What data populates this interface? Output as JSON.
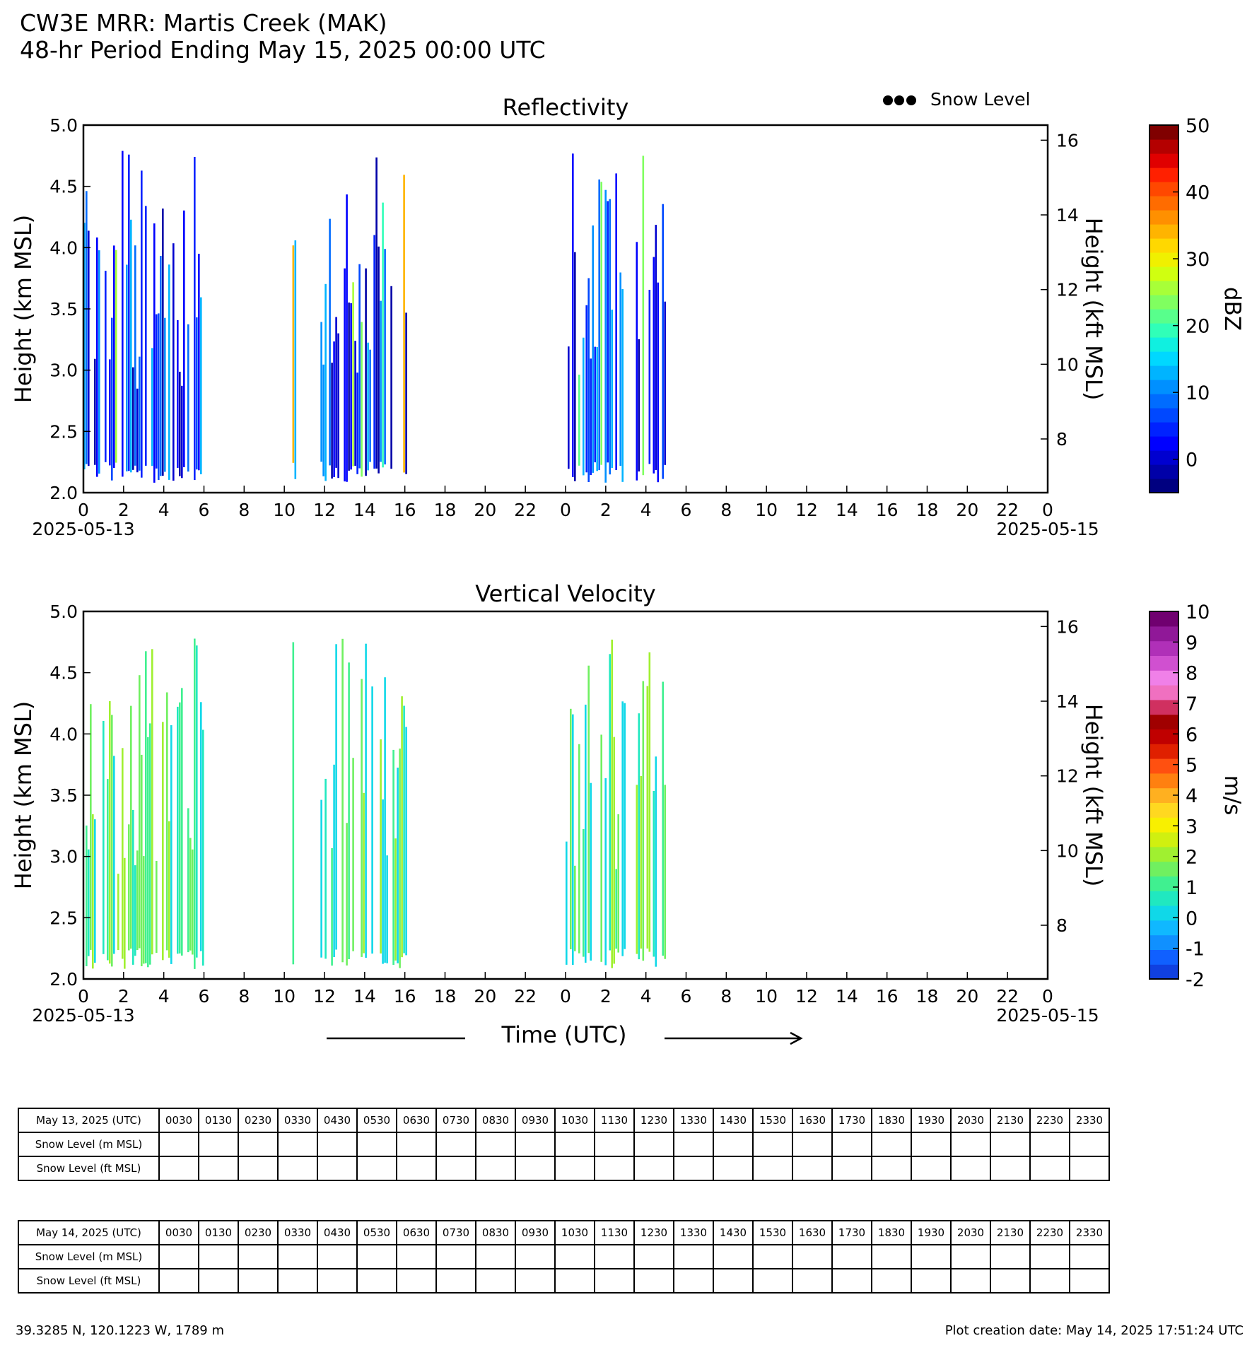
{
  "header": {
    "title_line1": "CW3E MRR: Martis Creek (MAK)",
    "title_line2": "48-hr Period Ending May 15, 2025 00:00 UTC"
  },
  "legend": {
    "snow_level_label": "Snow Level",
    "marker": "●●●"
  },
  "chart_data": [
    {
      "type": "heatmap",
      "title": "Reflectivity",
      "ylabel": "Height (km MSL)",
      "y2label": "Height (kft MSL)",
      "ylim": [
        2.0,
        5.0
      ],
      "y_ticks": [
        "2.0",
        "2.5",
        "3.0",
        "3.5",
        "4.0",
        "4.5",
        "5.0"
      ],
      "y2_ticks": [
        "8",
        "10",
        "12",
        "14",
        "16"
      ],
      "x_ticks": [
        "0",
        "2",
        "4",
        "6",
        "8",
        "10",
        "12",
        "14",
        "16",
        "18",
        "20",
        "22",
        "0",
        "2",
        "4",
        "6",
        "8",
        "10",
        "12",
        "14",
        "16",
        "18",
        "20",
        "22",
        "0"
      ],
      "x_start_label": "2025-05-13",
      "x_end_label": "2025-05-15",
      "colorbar": {
        "label": "dBZ",
        "min": -5,
        "max": 50,
        "ticks": [
          "0",
          "10",
          "20",
          "30",
          "40",
          "50"
        ],
        "colors": [
          "#000080",
          "#0000a8",
          "#0000d0",
          "#0000ff",
          "#0022ff",
          "#0048ff",
          "#006cff",
          "#0090ff",
          "#00b4ff",
          "#00d8ff",
          "#10f0e0",
          "#30ffb8",
          "#58ff8c",
          "#80ff60",
          "#a8ff38",
          "#d0ff10",
          "#f0f000",
          "#ffd800",
          "#ffb400",
          "#ff9000",
          "#ff6c00",
          "#ff4800",
          "#ff2000",
          "#e00000",
          "#b40000",
          "#800000"
        ]
      },
      "echo_periods_hours": [
        [
          0,
          6
        ],
        [
          10.4,
          10.6
        ],
        [
          11.8,
          16.1
        ],
        [
          24,
          25
        ],
        [
          25,
          27
        ],
        [
          27.5,
          28.6
        ],
        [
          28.8,
          29
        ]
      ],
      "echo_top_km": 4.8
    },
    {
      "type": "heatmap",
      "title": "Vertical Velocity",
      "ylabel": "Height (km MSL)",
      "y2label": "Height (kft MSL)",
      "xlabel": "Time (UTC)",
      "ylim": [
        2.0,
        5.0
      ],
      "y_ticks": [
        "2.0",
        "2.5",
        "3.0",
        "3.5",
        "4.0",
        "4.5",
        "5.0"
      ],
      "y2_ticks": [
        "8",
        "10",
        "12",
        "14",
        "16"
      ],
      "x_ticks": [
        "0",
        "2",
        "4",
        "6",
        "8",
        "10",
        "12",
        "14",
        "16",
        "18",
        "20",
        "22",
        "0",
        "2",
        "4",
        "6",
        "8",
        "10",
        "12",
        "14",
        "16",
        "18",
        "20",
        "22",
        "0"
      ],
      "x_start_label": "2025-05-13",
      "x_end_label": "2025-05-15",
      "colorbar": {
        "label": "m/s",
        "min": -2,
        "max": 10,
        "ticks": [
          "-2",
          "-1",
          "0",
          "1",
          "2",
          "3",
          "4",
          "5",
          "6",
          "7",
          "8",
          "9",
          "10"
        ],
        "colors": [
          "#1040e0",
          "#1060ff",
          "#1090ff",
          "#10b8ff",
          "#10d8e8",
          "#20e8c0",
          "#40f090",
          "#70f060",
          "#a0f030",
          "#d0f010",
          "#f8f000",
          "#ffd820",
          "#ffb020",
          "#ff8010",
          "#ff5010",
          "#e02000",
          "#c00000",
          "#a00000",
          "#d03060",
          "#f070c0",
          "#f080e8",
          "#d050d0",
          "#b030b8",
          "#901898",
          "#700070"
        ]
      },
      "echo_top_km": 4.8
    }
  ],
  "tables": [
    {
      "header_label": "May 13, 2025 (UTC)",
      "times": [
        "0030",
        "0130",
        "0230",
        "0330",
        "0430",
        "0530",
        "0630",
        "0730",
        "0830",
        "0930",
        "1030",
        "1130",
        "1230",
        "1330",
        "1430",
        "1530",
        "1630",
        "1730",
        "1830",
        "1930",
        "2030",
        "2130",
        "2230",
        "2330"
      ],
      "row_labels": [
        "Snow Level (m MSL)",
        "Snow Level (ft MSL)"
      ]
    },
    {
      "header_label": "May 14, 2025 (UTC)",
      "times": [
        "0030",
        "0130",
        "0230",
        "0330",
        "0430",
        "0530",
        "0630",
        "0730",
        "0830",
        "0930",
        "1030",
        "1130",
        "1230",
        "1330",
        "1430",
        "1530",
        "1630",
        "1730",
        "1830",
        "1930",
        "2030",
        "2130",
        "2230",
        "2330"
      ],
      "row_labels": [
        "Snow Level (m MSL)",
        "Snow Level (ft MSL)"
      ]
    }
  ],
  "footer": {
    "location": "39.3285 N, 120.1223 W, 1789 m",
    "creation": "Plot creation date: May 14, 2025 17:51:24 UTC"
  }
}
